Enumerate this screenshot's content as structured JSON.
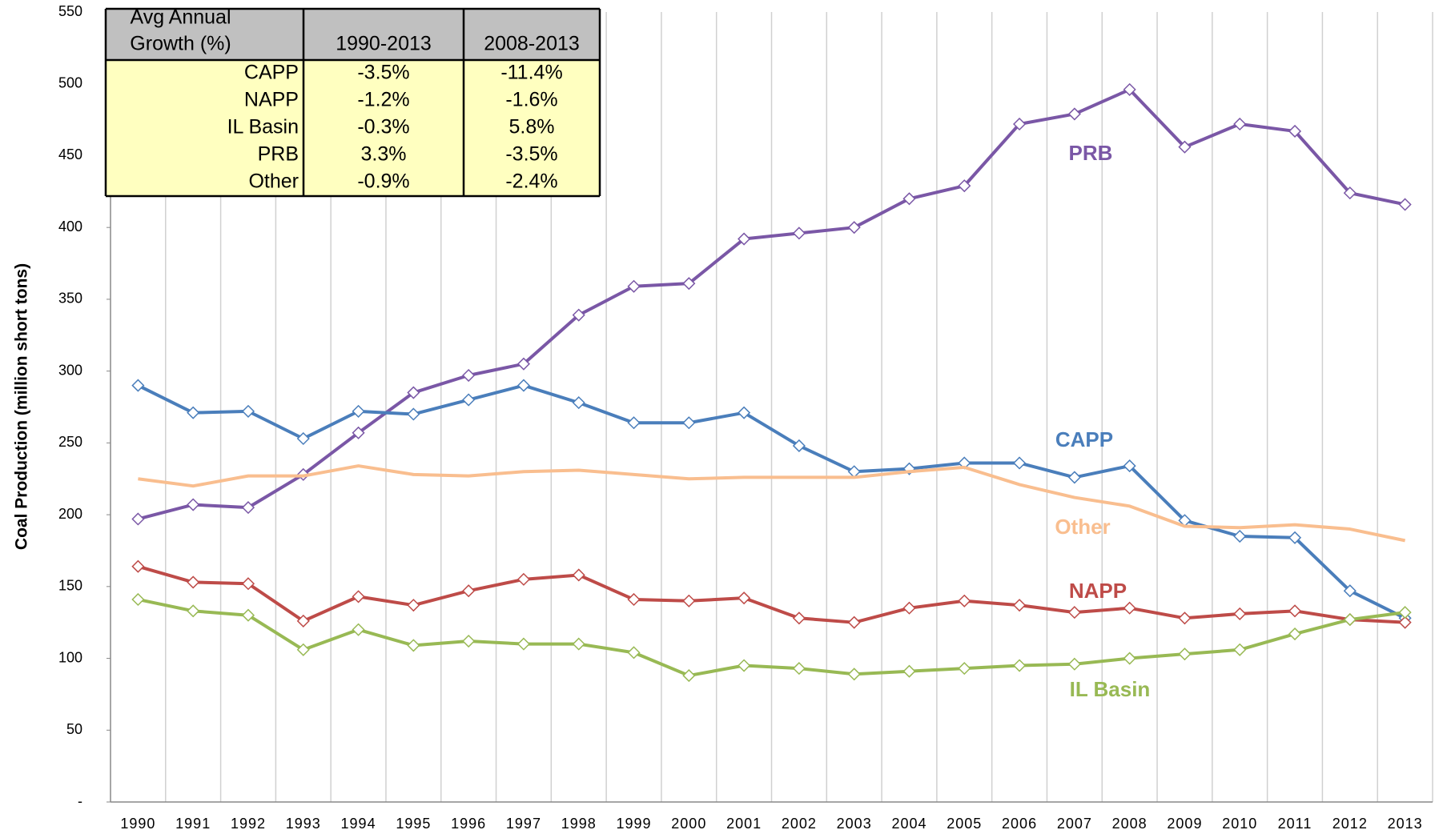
{
  "chart_data": {
    "type": "line",
    "y_label": "Coal Production (million short tons)",
    "categories": [
      "1990",
      "1991",
      "1992",
      "1993",
      "1994",
      "1995",
      "1996",
      "1997",
      "1998",
      "1999",
      "2000",
      "2001",
      "2002",
      "2003",
      "2004",
      "2005",
      "2006",
      "2007",
      "2008",
      "2009",
      "2010",
      "2011",
      "2012",
      "2013"
    ],
    "ylim": [
      0,
      550
    ],
    "yticks": [
      {
        "value": 0,
        "label": "-"
      },
      50,
      100,
      150,
      200,
      250,
      300,
      350,
      400,
      450,
      500,
      550
    ],
    "grid": "x",
    "series": [
      {
        "name": "PRB",
        "color": "#7a57a6",
        "markers": true,
        "values": [
          197,
          207,
          205,
          228,
          257,
          285,
          297,
          305,
          339,
          359,
          361,
          392,
          396,
          400,
          420,
          429,
          472,
          479,
          496,
          456,
          472,
          467,
          424,
          416
        ]
      },
      {
        "name": "CAPP",
        "color": "#4a7ebb",
        "markers": true,
        "values": [
          290,
          271,
          272,
          253,
          272,
          270,
          280,
          290,
          278,
          264,
          264,
          271,
          248,
          230,
          232,
          236,
          236,
          226,
          234,
          196,
          185,
          184,
          147,
          128
        ]
      },
      {
        "name": "Other",
        "color": "#f9be8f",
        "markers": false,
        "values": [
          225,
          220,
          227,
          227,
          234,
          228,
          227,
          230,
          231,
          228,
          225,
          226,
          226,
          226,
          230,
          233,
          221,
          212,
          206,
          192,
          191,
          193,
          190,
          182
        ]
      },
      {
        "name": "NAPP",
        "color": "#be4b48",
        "markers": true,
        "values": [
          164,
          153,
          152,
          126,
          143,
          137,
          147,
          155,
          158,
          141,
          140,
          142,
          128,
          125,
          135,
          140,
          137,
          132,
          135,
          128,
          131,
          133,
          127,
          125
        ]
      },
      {
        "name": "IL Basin",
        "color": "#98b954",
        "markers": true,
        "values": [
          141,
          133,
          130,
          106,
          120,
          109,
          112,
          110,
          110,
          104,
          88,
          95,
          93,
          89,
          91,
          93,
          95,
          96,
          100,
          103,
          106,
          117,
          127,
          132
        ]
      }
    ],
    "table": {
      "header": [
        [
          "Avg Annual",
          "Growth (%)"
        ],
        "1990-2013",
        "2008-2013"
      ],
      "rows": [
        [
          "CAPP",
          "-3.5%",
          "-11.4%"
        ],
        [
          "NAPP",
          "-1.2%",
          "-1.6%"
        ],
        [
          "IL Basin",
          "-0.3%",
          "5.8%"
        ],
        [
          "PRB",
          "3.3%",
          "-3.5%"
        ],
        [
          "Other",
          "-0.9%",
          "-2.4%"
        ]
      ]
    }
  }
}
